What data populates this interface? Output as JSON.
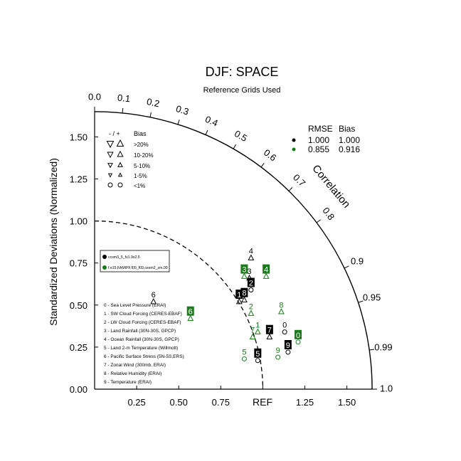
{
  "chart_data": {
    "type": "scatter",
    "subtype": "taylor-diagram",
    "title": "DJF: SPACE",
    "subtitle": "Reference Grids Used",
    "ylabel": "Standardized Deviations (Normalized)",
    "xlabel_ref": "REF",
    "correlation_label": "Correlation",
    "std_range": [
      0,
      1.65
    ],
    "std_ticks": [
      "0.00",
      "0.25",
      "0.50",
      "0.75",
      "1.00",
      "1.25",
      "1.50"
    ],
    "x_ticks": [
      "0.25",
      "0.50",
      "0.75",
      "1.25",
      "1.50"
    ],
    "corr_ticks": [
      "0.0",
      "0.1",
      "0.2",
      "0.3",
      "0.4",
      "0.5",
      "0.6",
      "0.7",
      "0.8",
      "0.9",
      "0.95",
      "0.99",
      "1.0"
    ],
    "bias_legend": {
      "header_sign": "- / +",
      "header_bias": "Bias",
      "rows": [
        ">20%",
        "10-20%",
        "5-10%",
        "1-5%",
        "<1%"
      ]
    },
    "stats_table": {
      "col_rmse": "RMSE",
      "col_bias": "Bias",
      "rows": [
        {
          "rmse": "1.000",
          "bias": "1.000",
          "color": "#000000"
        },
        {
          "rmse": "0.855",
          "bias": "0.916",
          "color": "#1a7a1a"
        }
      ]
    },
    "series": [
      {
        "name": "ccsm3_5_fv1.9x2.5",
        "color": "#000000"
      },
      {
        "name": "f.e15.FAMIPF.f09_f09.cesm2_zm.00",
        "color": "#1a7a1a"
      }
    ],
    "variable_list": [
      "0 - Sea Level Pressure (ERAI)",
      "1 - SW Cloud Forcing (CERES-EBAF)",
      "2 - LW Cloud Forcing (CERES-EBAF)",
      "3 - Land Rainfall (30N-30S, GPCP)",
      "4 - Ocean Rainfall (30N-30S, GPCP)",
      "5 - Land 2-m Temperature (Willmott)",
      "6 - Pacific Surface Stress (5N-5S,ERS)",
      "7 - Zonal Wind (300mb, ERAI)",
      "8 - Relative Humidity (ERAI)",
      "9 - Temperature (ERAI)"
    ],
    "points": [
      {
        "series": 0,
        "label": "0",
        "x": 1.13,
        "y": 0.34,
        "marker": "circle",
        "boxed": false
      },
      {
        "series": 0,
        "label": "1",
        "x": 0.86,
        "y": 0.52,
        "marker": "triangle-up",
        "boxed": true
      },
      {
        "series": 0,
        "label": "2",
        "x": 0.93,
        "y": 0.59,
        "marker": "circle",
        "boxed": true
      },
      {
        "series": 0,
        "label": "3",
        "x": 0.92,
        "y": 0.66,
        "marker": "triangle-up",
        "boxed": false
      },
      {
        "series": 0,
        "label": "4",
        "x": 0.93,
        "y": 0.78,
        "marker": "triangle-up",
        "boxed": false
      },
      {
        "series": 0,
        "label": "5",
        "x": 0.97,
        "y": 0.17,
        "marker": "circle",
        "boxed": true
      },
      {
        "series": 0,
        "label": "6",
        "x": 0.35,
        "y": 0.52,
        "marker": "triangle-up",
        "boxed": false
      },
      {
        "series": 0,
        "label": "7",
        "x": 1.04,
        "y": 0.31,
        "marker": "triangle-up",
        "boxed": true
      },
      {
        "series": 0,
        "label": "8",
        "x": 0.89,
        "y": 0.53,
        "marker": "triangle-up",
        "boxed": true
      },
      {
        "series": 0,
        "label": "9",
        "x": 1.15,
        "y": 0.22,
        "marker": "circle",
        "boxed": true
      },
      {
        "series": 1,
        "label": "0",
        "x": 1.21,
        "y": 0.28,
        "marker": "circle",
        "boxed": true
      },
      {
        "series": 1,
        "label": "1",
        "x": 0.97,
        "y": 0.34,
        "marker": "triangle-up",
        "boxed": false
      },
      {
        "series": 1,
        "label": "2",
        "x": 0.93,
        "y": 0.45,
        "marker": "triangle-up",
        "boxed": false
      },
      {
        "series": 1,
        "label": "3",
        "x": 0.89,
        "y": 0.67,
        "marker": "triangle-up",
        "boxed": true
      },
      {
        "series": 1,
        "label": "4",
        "x": 1.02,
        "y": 0.67,
        "marker": "triangle-up",
        "boxed": true
      },
      {
        "series": 1,
        "label": "5",
        "x": 0.89,
        "y": 0.18,
        "marker": "circle",
        "boxed": false
      },
      {
        "series": 1,
        "label": "6",
        "x": 0.57,
        "y": 0.42,
        "marker": "triangle-up",
        "boxed": true
      },
      {
        "series": 1,
        "label": "7",
        "x": 0.94,
        "y": 0.31,
        "marker": "triangle-up",
        "boxed": false
      },
      {
        "series": 1,
        "label": "8",
        "x": 1.11,
        "y": 0.46,
        "marker": "triangle-up",
        "boxed": false
      },
      {
        "series": 1,
        "label": "9",
        "x": 1.09,
        "y": 0.19,
        "marker": "circle",
        "boxed": false
      }
    ]
  }
}
